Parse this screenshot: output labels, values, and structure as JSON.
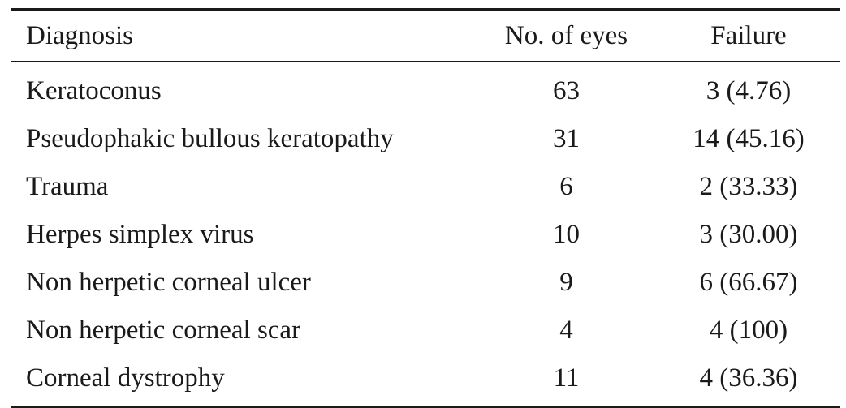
{
  "table": {
    "headers": {
      "diagnosis": "Diagnosis",
      "eyes": "No. of eyes",
      "failure": "Failure"
    },
    "rows": [
      {
        "diagnosis": "Keratoconus",
        "eyes": "63",
        "failure": "3 (4.76)"
      },
      {
        "diagnosis": "Pseudophakic bullous keratopathy",
        "eyes": "31",
        "failure": "14 (45.16)"
      },
      {
        "diagnosis": "Trauma",
        "eyes": "6",
        "failure": "2 (33.33)"
      },
      {
        "diagnosis": "Herpes simplex virus",
        "eyes": "10",
        "failure": "3 (30.00)"
      },
      {
        "diagnosis": "Non herpetic corneal ulcer",
        "eyes": "9",
        "failure": "6 (66.67)"
      },
      {
        "diagnosis": "Non herpetic corneal scar",
        "eyes": "4",
        "failure": "4 (100)"
      },
      {
        "diagnosis": "Corneal dystrophy",
        "eyes": "11",
        "failure": "4 (36.36)"
      }
    ]
  }
}
